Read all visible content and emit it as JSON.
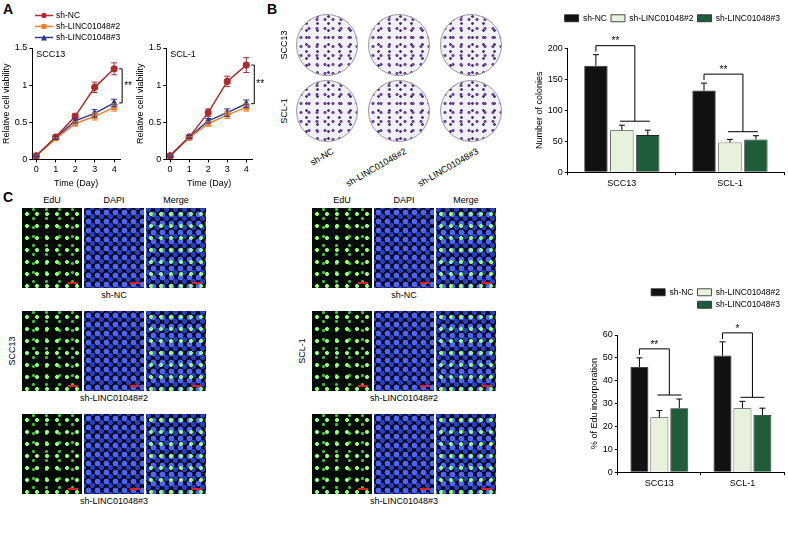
{
  "chart_data": [
    {
      "type": "line",
      "title": "SCC13",
      "x_label": "Time (Day)",
      "y_label": "Relative cell viability",
      "legend": "top left",
      "grid": false,
      "x": [
        0,
        1,
        2,
        3,
        4
      ],
      "xlim": [
        -0.2,
        4.3
      ],
      "xticks": [
        0,
        1,
        2,
        3,
        4
      ],
      "ylim": [
        0,
        1.5
      ],
      "yticks": [
        0,
        0.5,
        1,
        1.5
      ],
      "series": [
        {
          "name": "sh-NC",
          "color": "#b22a2e",
          "marker": "circle",
          "values": [
            0.05,
            0.3,
            0.58,
            0.97,
            1.22
          ],
          "errors": [
            0.01,
            0.02,
            0.04,
            0.07,
            0.08
          ]
        },
        {
          "name": "sh-LINC01048#2",
          "color": "#e8812c",
          "marker": "square",
          "values": [
            0.05,
            0.28,
            0.48,
            0.58,
            0.7
          ],
          "errors": [
            0.01,
            0.02,
            0.03,
            0.05,
            0.05
          ]
        },
        {
          "name": "sh-LINC01048#3",
          "color": "#2e3a92",
          "marker": "triangle",
          "values": [
            0.05,
            0.29,
            0.52,
            0.62,
            0.76
          ],
          "errors": [
            0.01,
            0.02,
            0.03,
            0.05,
            0.05
          ]
        }
      ],
      "annotations": [
        {
          "text": "**",
          "x": 4
        }
      ]
    },
    {
      "type": "line",
      "title": "SCL-1",
      "x_label": "Time (Day)",
      "y_label": "Relative cell viability",
      "grid": false,
      "x": [
        0,
        1,
        2,
        3,
        4
      ],
      "xlim": [
        -0.2,
        4.3
      ],
      "xticks": [
        0,
        1,
        2,
        3,
        4
      ],
      "ylim": [
        0,
        1.5
      ],
      "yticks": [
        0,
        0.5,
        1,
        1.5
      ],
      "series": [
        {
          "name": "sh-NC",
          "color": "#b22a2e",
          "marker": "circle",
          "values": [
            0.05,
            0.3,
            0.63,
            1.05,
            1.27
          ],
          "errors": [
            0.01,
            0.02,
            0.05,
            0.07,
            0.1
          ]
        },
        {
          "name": "sh-LINC01048#2",
          "color": "#e8812c",
          "marker": "square",
          "values": [
            0.05,
            0.29,
            0.48,
            0.6,
            0.7
          ],
          "errors": [
            0.01,
            0.02,
            0.03,
            0.05,
            0.05
          ]
        },
        {
          "name": "sh-LINC01048#3",
          "color": "#2e3a92",
          "marker": "triangle",
          "values": [
            0.05,
            0.3,
            0.52,
            0.63,
            0.75
          ],
          "errors": [
            0.01,
            0.02,
            0.03,
            0.05,
            0.05
          ]
        }
      ],
      "annotations": [
        {
          "text": "**",
          "x": 4
        }
      ]
    },
    {
      "type": "bar",
      "y_label": "Number of colonies",
      "legend": "top right",
      "grid": false,
      "categories": [
        "SCC13",
        "SCL-1"
      ],
      "ylim": [
        0,
        200
      ],
      "yticks": [
        0,
        50,
        100,
        150,
        200
      ],
      "series": [
        {
          "name": "sh-NC",
          "color": "#111111",
          "values": [
            172,
            132
          ],
          "errors": [
            18,
            12
          ]
        },
        {
          "name": "sh-LINC01048#2",
          "color": "#e6f2dc",
          "values": [
            68,
            48
          ],
          "errors": [
            8,
            5
          ]
        },
        {
          "name": "sh-LINC01048#3",
          "color": "#1e5c3a",
          "values": [
            60,
            53
          ],
          "errors": [
            8,
            6
          ]
        }
      ],
      "annotations": [
        {
          "text": "**",
          "category": "SCC13"
        },
        {
          "text": "**",
          "category": "SCL-1"
        }
      ]
    },
    {
      "type": "bar",
      "y_label": "% of Edu incorporation",
      "legend": "top right",
      "grid": false,
      "categories": [
        "SCC13",
        "SCL-1"
      ],
      "ylim": [
        0,
        60
      ],
      "yticks": [
        0,
        10,
        20,
        30,
        40,
        50,
        60
      ],
      "series": [
        {
          "name": "sh-NC",
          "color": "#111111",
          "values": [
            46,
            51
          ],
          "errors": [
            4,
            6
          ]
        },
        {
          "name": "sh-LINC01048#2",
          "color": "#e6f2dc",
          "values": [
            24,
            28
          ],
          "errors": [
            3,
            3
          ]
        },
        {
          "name": "sh-LINC01048#3",
          "color": "#1e5c3a",
          "values": [
            28,
            25
          ],
          "errors": [
            4,
            3
          ]
        }
      ],
      "annotations": [
        {
          "text": "**",
          "category": "SCC13"
        },
        {
          "text": "*",
          "category": "SCL-1"
        }
      ]
    }
  ],
  "figure": {
    "panel_labels": [
      "A",
      "B",
      "C"
    ],
    "colony_plates": {
      "rows": [
        "SCC13",
        "SCL-1"
      ],
      "columns": [
        "sh-NC",
        "sh-LINC01048#2",
        "sh-LINC01048#3"
      ]
    },
    "edu_staining": [
      {
        "cell_line": "SCC13",
        "channels": [
          "EdU",
          "DAPI",
          "Merge"
        ],
        "conditions": [
          "sh-NC",
          "sh-LINC01048#2",
          "sh-LINC01048#3"
        ]
      },
      {
        "cell_line": "SCL-1",
        "channels": [
          "EdU",
          "DAPI",
          "Merge"
        ],
        "conditions": [
          "sh-NC",
          "sh-LINC01048#2",
          "sh-LINC01048#3"
        ]
      }
    ]
  }
}
